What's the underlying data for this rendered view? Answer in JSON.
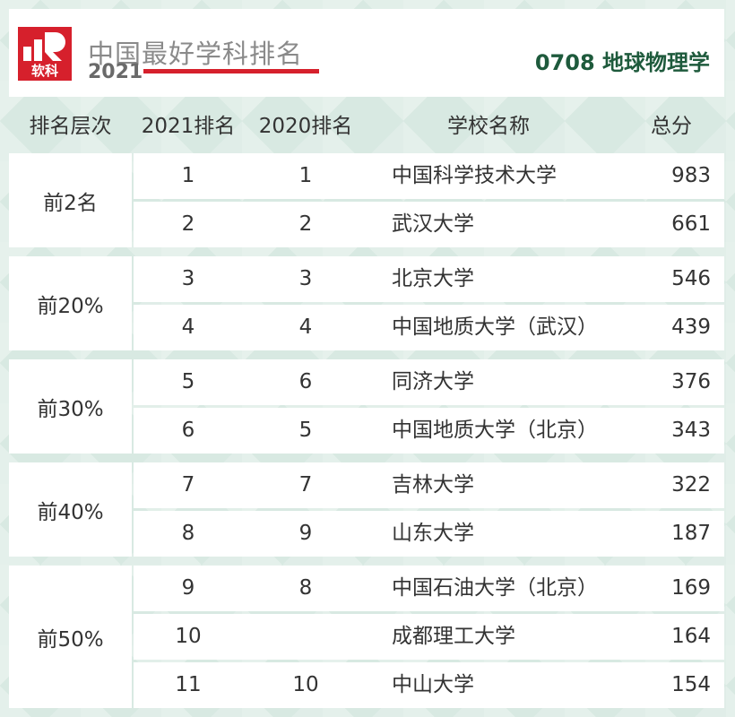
{
  "header": {
    "brand_title": "中国最好学科排名",
    "brand_year": "2021",
    "logo_text": "软科",
    "discipline": "0708 地球物理学",
    "colors": {
      "brand_red": "#d6202c",
      "discipline_green": "#1e5a3c"
    }
  },
  "table": {
    "columns": [
      "排名层次",
      "2021排名",
      "2020排名",
      "学校名称",
      "总分"
    ],
    "groups": [
      {
        "tier": "前2名",
        "rows": [
          {
            "rank2021": "1",
            "rank2020": "1",
            "name": "中国科学技术大学",
            "score": "983"
          },
          {
            "rank2021": "2",
            "rank2020": "2",
            "name": "武汉大学",
            "score": "661"
          }
        ]
      },
      {
        "tier": "前20%",
        "rows": [
          {
            "rank2021": "3",
            "rank2020": "3",
            "name": "北京大学",
            "score": "546"
          },
          {
            "rank2021": "4",
            "rank2020": "4",
            "name": "中国地质大学（武汉）",
            "score": "439"
          }
        ]
      },
      {
        "tier": "前30%",
        "rows": [
          {
            "rank2021": "5",
            "rank2020": "6",
            "name": "同济大学",
            "score": "376"
          },
          {
            "rank2021": "6",
            "rank2020": "5",
            "name": "中国地质大学（北京）",
            "score": "343"
          }
        ]
      },
      {
        "tier": "前40%",
        "rows": [
          {
            "rank2021": "7",
            "rank2020": "7",
            "name": "吉林大学",
            "score": "322"
          },
          {
            "rank2021": "8",
            "rank2020": "9",
            "name": "山东大学",
            "score": "187"
          }
        ]
      },
      {
        "tier": "前50%",
        "rows": [
          {
            "rank2021": "9",
            "rank2020": "8",
            "name": "中国石油大学（北京）",
            "score": "169"
          },
          {
            "rank2021": "10",
            "rank2020": "",
            "name": "成都理工大学",
            "score": "164"
          },
          {
            "rank2021": "11",
            "rank2020": "10",
            "name": "中山大学",
            "score": "154"
          }
        ]
      }
    ]
  }
}
